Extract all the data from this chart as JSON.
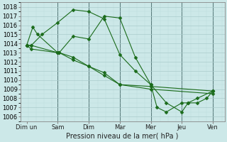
{
  "background_color": "#cce8e8",
  "grid_color_major": "#aacccc",
  "grid_color_minor": "#bbdddd",
  "line_color": "#1a6b1a",
  "marker": "D",
  "marker_size": 2.5,
  "xlabel": "Pression niveau de la mer( hPa )",
  "ylim": [
    1005.5,
    1018.5
  ],
  "yticks": [
    1006,
    1007,
    1008,
    1009,
    1010,
    1011,
    1012,
    1013,
    1014,
    1015,
    1016,
    1017,
    1018
  ],
  "xtick_labels": [
    "Dim un",
    "Sam",
    "Dim",
    "Mar",
    "Mer",
    "Jeu",
    "Ven"
  ],
  "xtick_pos": [
    0,
    40,
    80,
    120,
    160,
    200,
    240
  ],
  "day_sep_x": [
    0,
    40,
    80,
    120,
    160,
    200,
    240
  ],
  "series": [
    {
      "x": [
        0,
        8,
        14,
        40,
        42,
        60,
        80,
        100,
        120,
        160,
        240
      ],
      "y": [
        1013.8,
        1015.8,
        1015.0,
        1013.0,
        1013.0,
        1012.5,
        1011.5,
        1010.8,
        1009.5,
        1009.3,
        1008.8
      ]
    },
    {
      "x": [
        0,
        6,
        40,
        42,
        60,
        80,
        100,
        120,
        160,
        240
      ],
      "y": [
        1013.8,
        1013.4,
        1013.0,
        1013.0,
        1012.2,
        1011.5,
        1010.5,
        1009.5,
        1009.0,
        1008.5
      ]
    },
    {
      "x": [
        0,
        6,
        20,
        40,
        60,
        80,
        100,
        120,
        140,
        160,
        168,
        180,
        200,
        208,
        220,
        240
      ],
      "y": [
        1013.8,
        1013.8,
        1015.0,
        1016.3,
        1017.7,
        1017.5,
        1016.7,
        1012.8,
        1011.0,
        1009.5,
        1007.0,
        1006.5,
        1007.5,
        1007.5,
        1008.0,
        1008.8
      ]
    },
    {
      "x": [
        0,
        6,
        40,
        42,
        60,
        80,
        100,
        120,
        140,
        160,
        180,
        200,
        208,
        220,
        232,
        240
      ],
      "y": [
        1013.8,
        1013.8,
        1013.0,
        1013.0,
        1014.8,
        1014.5,
        1017.0,
        1016.8,
        1012.5,
        1009.5,
        1007.5,
        1006.5,
        1007.5,
        1007.5,
        1008.0,
        1008.8
      ]
    }
  ]
}
